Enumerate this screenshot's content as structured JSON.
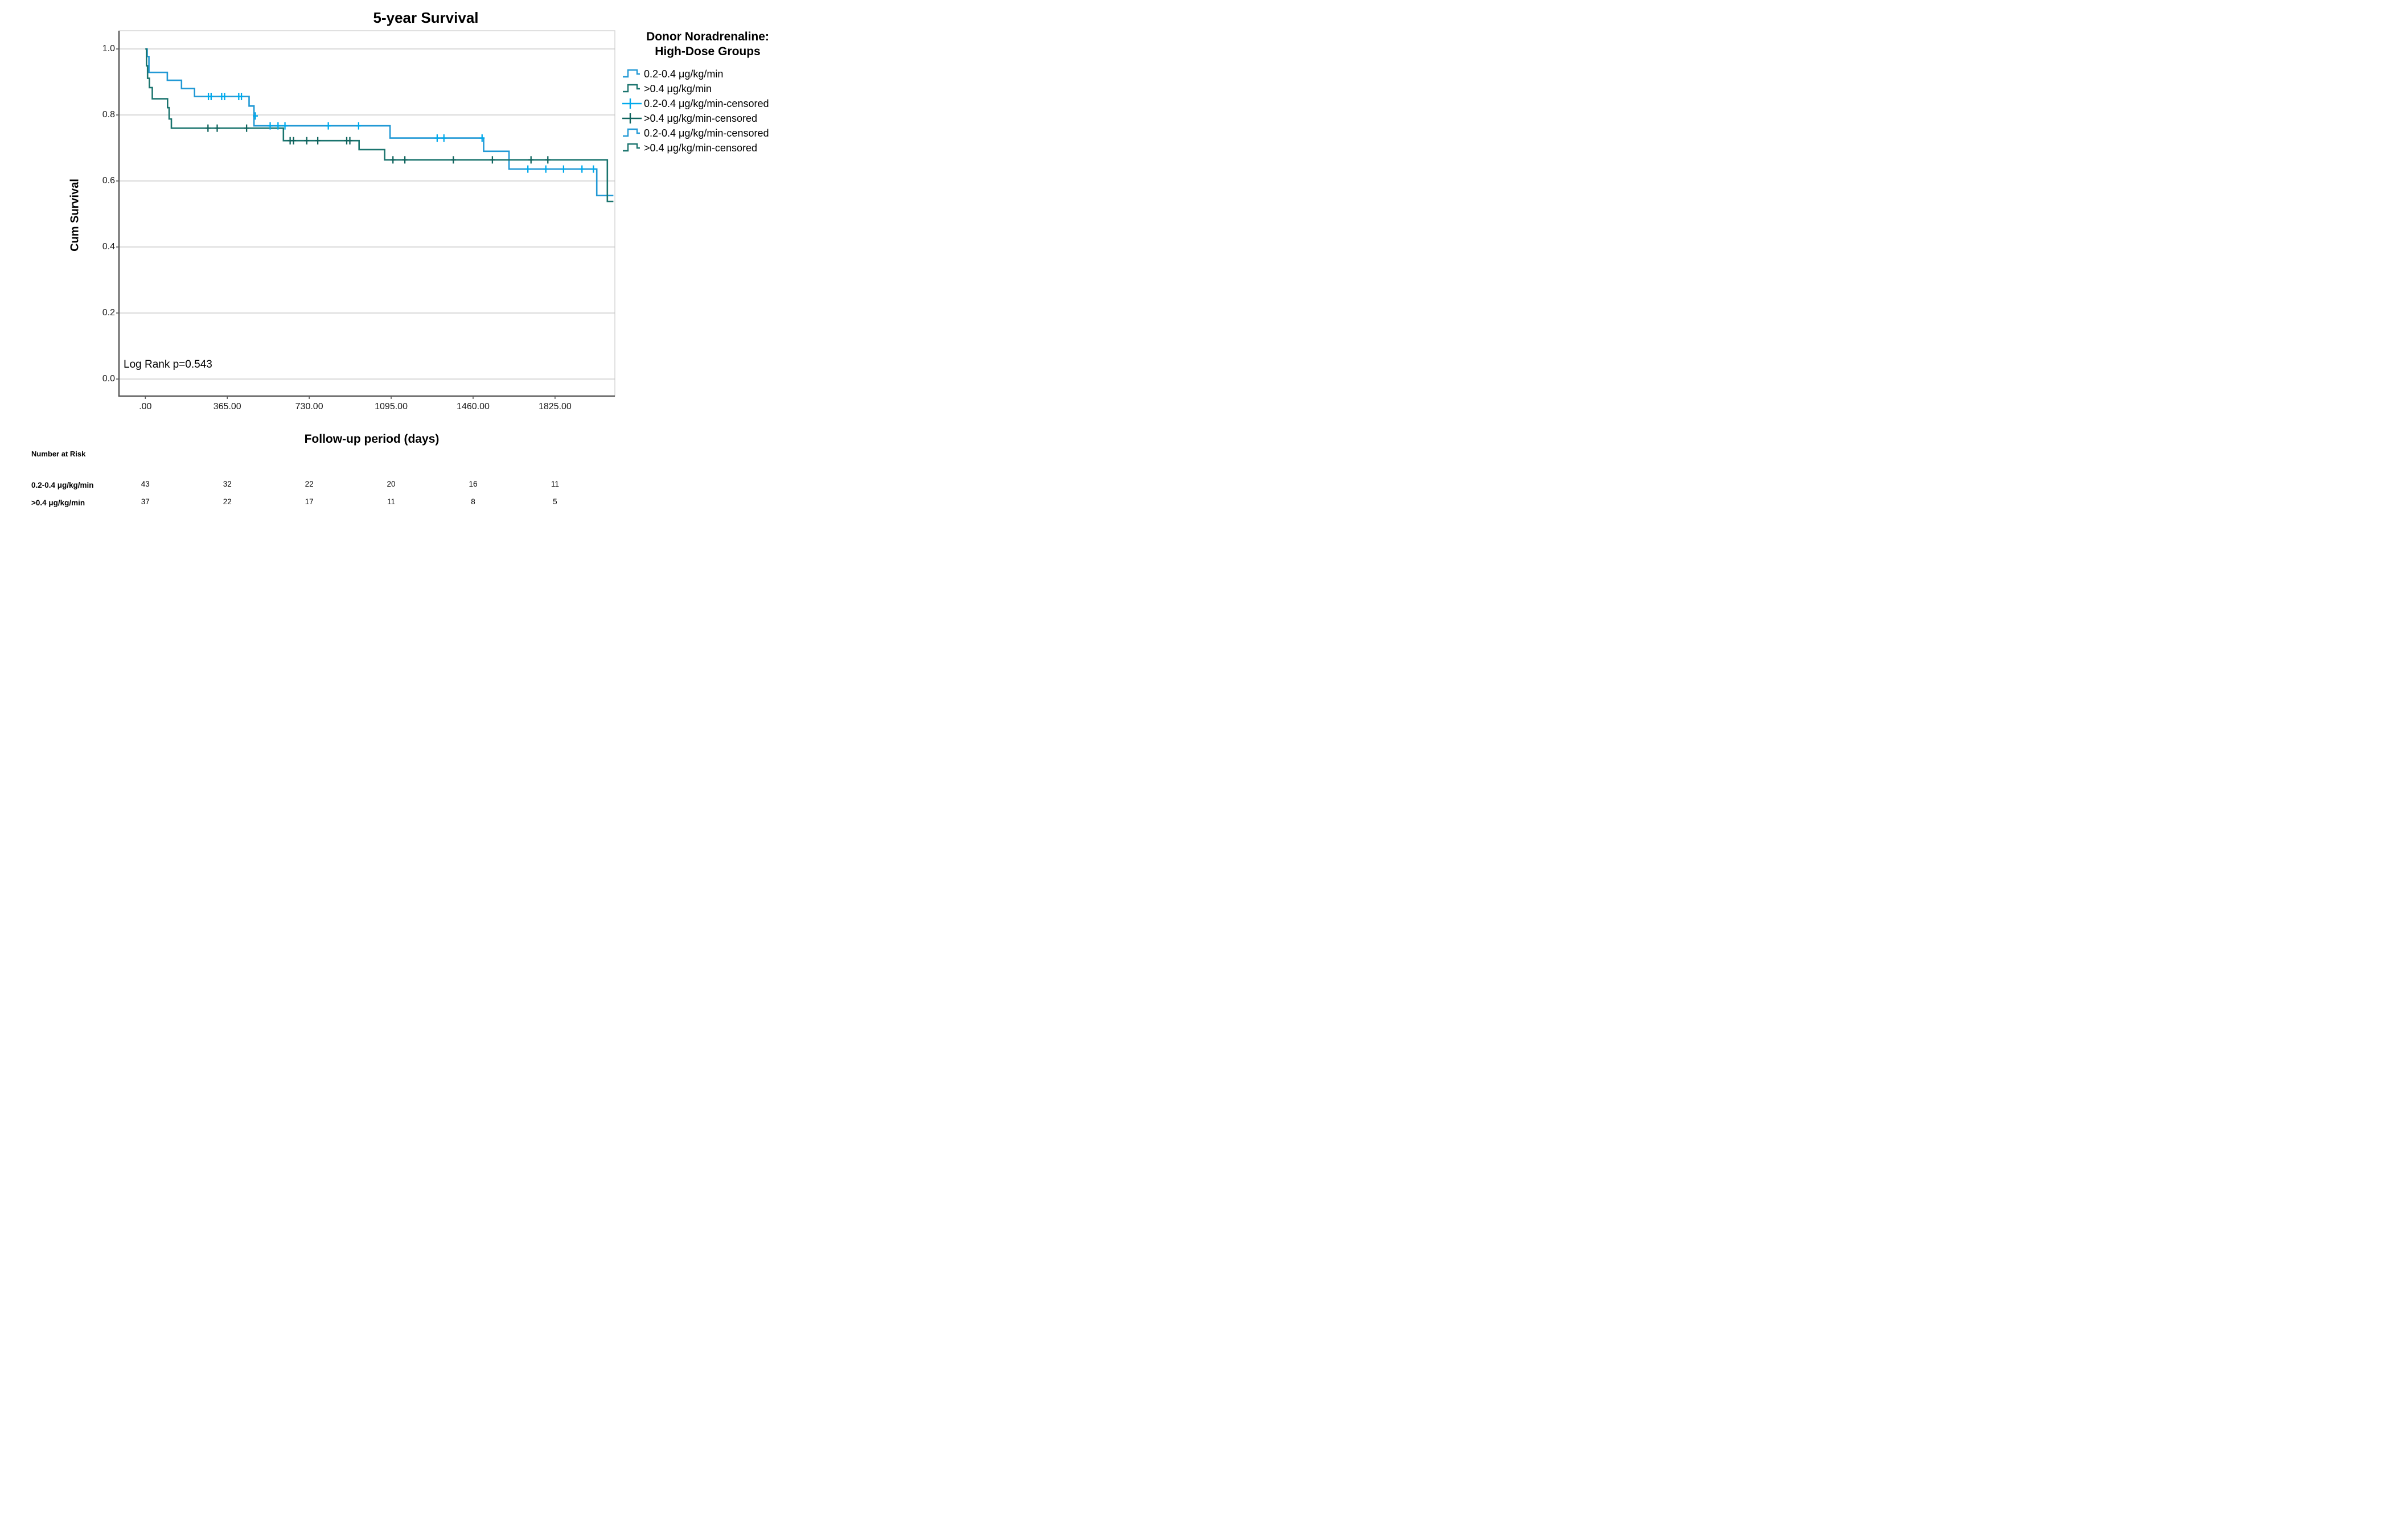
{
  "chart_data": {
    "type": "line",
    "subtype": "kaplan-meier-step",
    "title": "5-year Survival",
    "xlabel": "Follow-up period (days)",
    "ylabel": "Cum Survival",
    "annotation": "Log Rank p=0.543",
    "xlim": [
      0,
      2092
    ],
    "ylim": [
      0.0,
      1.0
    ],
    "grid": "horizontal",
    "x_ticks": [
      {
        "label": ".00",
        "day": 0
      },
      {
        "label": "365.00",
        "day": 365
      },
      {
        "label": "730.00",
        "day": 730
      },
      {
        "label": "1095.00",
        "day": 1095
      },
      {
        "label": "1460.00",
        "day": 1460
      },
      {
        "label": "1825.00",
        "day": 1825
      }
    ],
    "y_ticks": [
      {
        "label": "1.0",
        "value": 1.0
      },
      {
        "label": "0.8",
        "value": 0.8
      },
      {
        "label": "0.6",
        "value": 0.6
      },
      {
        "label": "0.4",
        "value": 0.4
      },
      {
        "label": "0.2",
        "value": 0.2
      },
      {
        "label": "0.0",
        "value": 0.0
      }
    ],
    "series": [
      {
        "name": "0.2-0.4 μg/kg/min",
        "color": "#2299d5",
        "censor_color": "#00a9ec",
        "steps": [
          [
            0,
            1.0
          ],
          [
            8,
            0.977
          ],
          [
            16,
            0.929
          ],
          [
            98,
            0.905
          ],
          [
            161,
            0.88
          ],
          [
            219,
            0.856
          ],
          [
            462,
            0.827
          ],
          [
            484,
            0.767
          ],
          [
            1090,
            0.73
          ],
          [
            1507,
            0.69
          ],
          [
            1620,
            0.636
          ],
          [
            2011,
            0.556
          ],
          [
            2085,
            0.556
          ]
        ],
        "censors": [
          [
            281,
            0.856
          ],
          [
            293,
            0.856
          ],
          [
            340,
            0.856
          ],
          [
            353,
            0.856
          ],
          [
            416,
            0.856
          ],
          [
            428,
            0.856
          ],
          [
            490,
            0.797
          ],
          [
            556,
            0.767
          ],
          [
            591,
            0.767
          ],
          [
            622,
            0.767
          ],
          [
            815,
            0.767
          ],
          [
            950,
            0.767
          ],
          [
            1300,
            0.73
          ],
          [
            1330,
            0.73
          ],
          [
            1500,
            0.73
          ],
          [
            1704,
            0.636
          ],
          [
            1784,
            0.636
          ],
          [
            1863,
            0.636
          ],
          [
            1945,
            0.636
          ],
          [
            1996,
            0.636
          ]
        ]
      },
      {
        "name": ">0.4 μg/kg/min",
        "color": "#1a746e",
        "censor_color": "#0f635d",
        "steps": [
          [
            0,
            1.0
          ],
          [
            5,
            0.949
          ],
          [
            10,
            0.911
          ],
          [
            18,
            0.883
          ],
          [
            31,
            0.849
          ],
          [
            99,
            0.822
          ],
          [
            106,
            0.788
          ],
          [
            116,
            0.76
          ],
          [
            615,
            0.722
          ],
          [
            952,
            0.695
          ],
          [
            1066,
            0.664
          ],
          [
            2058,
            0.538
          ],
          [
            2085,
            0.538
          ]
        ],
        "censors": [
          [
            279,
            0.76
          ],
          [
            320,
            0.76
          ],
          [
            451,
            0.76
          ],
          [
            645,
            0.722
          ],
          [
            660,
            0.722
          ],
          [
            719,
            0.722
          ],
          [
            768,
            0.722
          ],
          [
            897,
            0.722
          ],
          [
            911,
            0.722
          ],
          [
            1103,
            0.664
          ],
          [
            1156,
            0.664
          ],
          [
            1372,
            0.664
          ],
          [
            1546,
            0.664
          ],
          [
            1718,
            0.664
          ],
          [
            1793,
            0.664
          ]
        ]
      }
    ]
  },
  "legend": {
    "title_line1": "Donor Noradrenaline:",
    "title_line2": "High-Dose Groups",
    "items": [
      {
        "label": "0.2-0.4 μg/kg/min",
        "glyph": "step-line",
        "series": 0
      },
      {
        "label": ">0.4 μg/kg/min",
        "glyph": "step-line",
        "series": 1
      },
      {
        "label": "0.2-0.4 μg/kg/min-censored",
        "glyph": "plus-line",
        "series": 0
      },
      {
        "label": ">0.4 μg/kg/min-censored",
        "glyph": "plus-line",
        "series": 1
      },
      {
        "label": "0.2-0.4 μg/kg/min-censored",
        "glyph": "step-line",
        "series": 0
      },
      {
        "label": ">0.4 μg/kg/min-censored",
        "glyph": "step-line",
        "series": 1
      }
    ]
  },
  "risk_table": {
    "header": "Number at Risk",
    "rows": [
      {
        "label": "0.2-0.4 μg/kg/min",
        "values": [
          "43",
          "32",
          "22",
          "20",
          "16",
          "11"
        ]
      },
      {
        "label": ">0.4 μg/kg/min",
        "values": [
          "37",
          "22",
          "17",
          "11",
          "8",
          "5"
        ]
      }
    ]
  },
  "colors": {
    "gridline": "#c3c3c3",
    "frame": "#d2d2d2",
    "axis": "#5a5a5a",
    "text": "#000000"
  }
}
